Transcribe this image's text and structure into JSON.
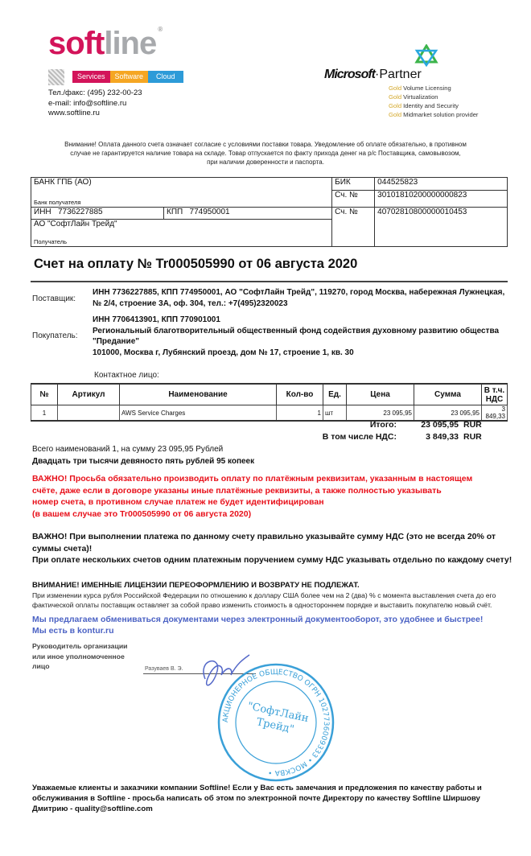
{
  "header": {
    "logo": {
      "part1": "soft",
      "part2": "line",
      "reg": "®"
    },
    "tagline": [
      "Services",
      "Software",
      "Cloud"
    ],
    "tagline_colors": [
      "#d3145a",
      "#f5a623",
      "#2d9bd8"
    ],
    "phone": "Тел./факс: (495) 232-00-23",
    "email": "e-mail: info@softline.ru",
    "site": "www.softline.ru",
    "ms_brand": "Microsoft",
    "ms_partner": "Partner",
    "gold_word": "Gold",
    "competencies": [
      "Volume Licensing",
      "Virtualization",
      "Identity and Security",
      "Midmarket solution provider"
    ]
  },
  "notice": "Внимание! Оплата данного счета означает согласие с условиями поставки товара. Уведомление об оплате обязательно, в противном случае не гарантируется наличие товара на складе. Товар отпускается по факту прихода денег на р/с Поставщика, самовывозом, при наличии доверенности и паспорта.",
  "bank": {
    "bank_name": "БАНК ГПБ (АО)",
    "bank_label": "Банк получателя",
    "bik_label": "БИК",
    "bik": "044525823",
    "corr_label": "Сч. №",
    "corr": "30101810200000000823",
    "inn_label": "ИНН",
    "inn": "7736227885",
    "kpp_label": "КПП",
    "kpp": "774950001",
    "acc_label": "Сч. №",
    "acc": "40702810800000010453",
    "recipient": "АО \"СофтЛайн Трейд\"",
    "recipient_label": "Получатель"
  },
  "title": "Счет на оплату № Tr000505990 от 06 августа 2020",
  "supplier": {
    "label": "Поставщик:",
    "text": "ИНН 7736227885,  КПП 774950001,  АО \"СофтЛайн Трейд\",  119270, город Москва, набережная Лужнецкая,  № 2/4, строение 3А, оф. 304,  тел.: +7(495)2320023"
  },
  "buyer": {
    "label": "Покупатель:",
    "line1": "ИНН 7706413901,  КПП 770901001",
    "line2": "Региональный благотворительный общественный фонд содействия духовному развитию общества \"Предание\"",
    "line3": "101000, Москва г, Лубянский проезд, дом № 17, строение 1, кв. 30"
  },
  "contact_label": "Контактное лицо:",
  "items": {
    "headers": [
      "№",
      "Артикул",
      "Наименование",
      "Кол-во",
      "Ед.",
      "Цена",
      "Сумма",
      "В т.ч. НДС"
    ],
    "rows": [
      [
        "1",
        "",
        "AWS Service Charges",
        "1",
        "шт",
        "23 095,95",
        "23 095,95",
        "3 849,33"
      ]
    ]
  },
  "totals": {
    "total_label": "Итого:",
    "total": "23 095,95",
    "vat_label": "В том числе НДС:",
    "vat": "3 849,33",
    "currency": "RUR"
  },
  "summary": "Всего наименований 1, на сумму 23 095,95 Рублей",
  "in_words": "Двадцать три тысячи девяносто пять рублей 95 копеек",
  "important_red": [
    "ВАЖНО! Просьба обязательно производить оплату по платёжным реквизитам, указанным в настоящем",
    "счёте, даже если в договоре указаны иные платёжные реквизиты, а также полностью указывать",
    "номер счета, в противном случае платеж не будет идентифицирован",
    "(в вашем случае это Tr000505990 от 06 августа 2020)"
  ],
  "important_vat": [
    "ВАЖНО! При выполнении платежа по данному счету правильно указывайте сумму НДС (это не всегда 20% от суммы счета)!",
    "При оплате нескольких счетов одним платежным поручением сумму НДС указывать отдельно по каждому счету!"
  ],
  "warning_title": "ВНИМАНИЕ! ИМЕННЫЕ ЛИЦЕНЗИИ ПЕРЕОФОРМЛЕНИЮ И ВОЗВРАТУ НЕ ПОДЛЕЖАТ.",
  "warning_text": "При изменении курса рубля Российской Федерации по отношению к доллару США более чем на 2 (два) % с момента выставления счета до его фактической оплаты поставщик оставляет за собой право изменить стоимость в одностороннем порядке и выставить покупателю новый счёт.",
  "edo": [
    "Мы предлагаем обмениваться документами через электронный документооборот, это удобнее и быстрее!",
    "Мы есть в kontur.ru"
  ],
  "signature": {
    "role": [
      "Руководитель организации",
      "или иное уполномоченное",
      "лицо"
    ],
    "name": "Разуваев В. Э."
  },
  "stamp": {
    "outer": "АКЦИОНЕРНОЕ ОБЩЕСТВО ОГРН 1027736009333 • МОСКВА •",
    "center": "\"СофтЛайн Трейд\"",
    "color": "#3aa0d8"
  },
  "footer": "Уважаемые клиенты и заказчики компании Softline! Если у Вас есть замечания и предложения по качеству работы и обслуживания в Softline - просьба написать об этом по электронной почте Директору по качеству Softline Ширшову Дмитрию - quality@softline.com"
}
